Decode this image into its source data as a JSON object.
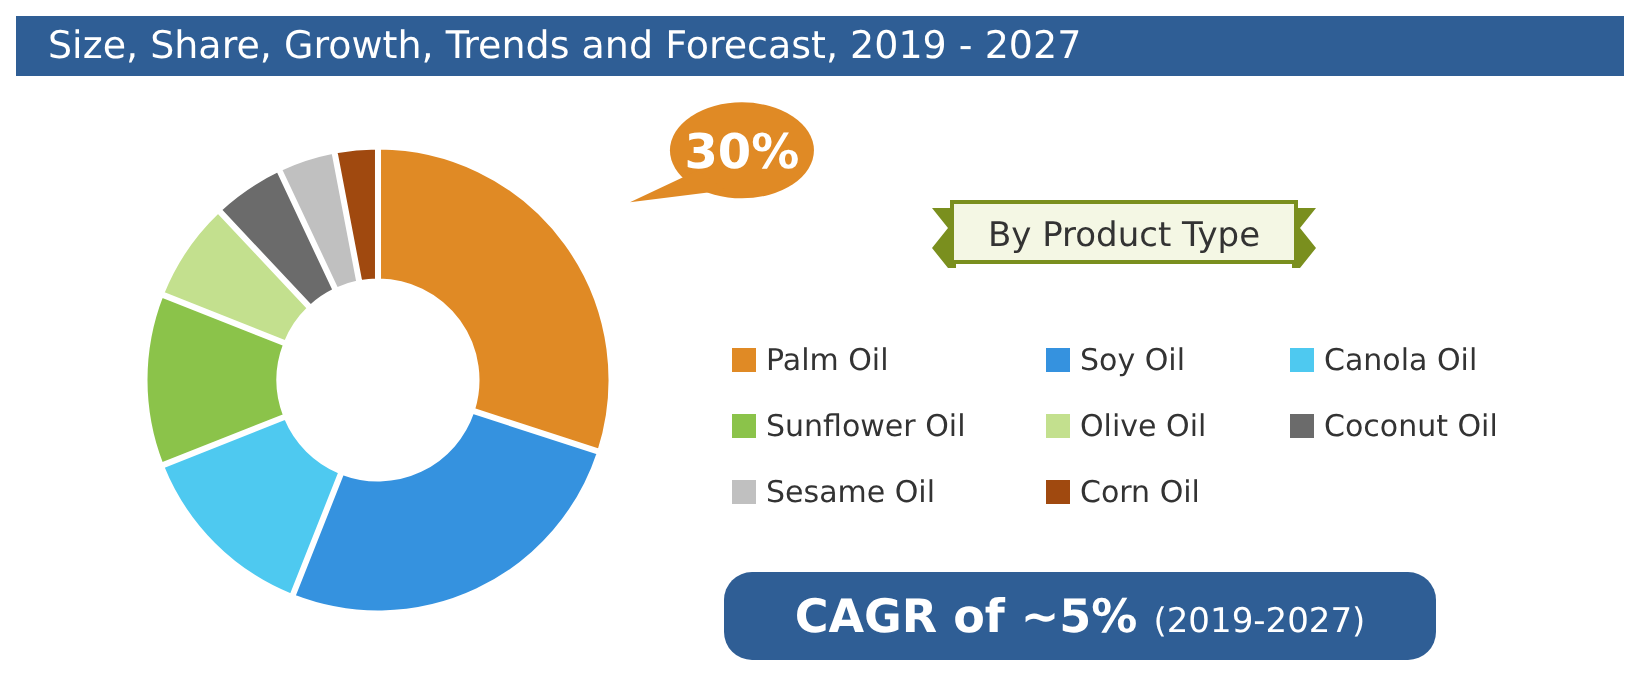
{
  "chart_data": {
    "type": "donut",
    "title": "Size, Share, Growth, Trends and Forecast, 2019 - 2027",
    "legend_title": "By Product Type",
    "legend": "right",
    "categories": [
      "Palm Oil",
      "Soy Oil",
      "Canola Oil",
      "Sunflower Oil",
      "Olive Oil",
      "Coconut Oil",
      "Sesame Oil",
      "Corn Oil"
    ],
    "values": [
      30,
      26,
      13,
      12,
      7,
      5,
      4,
      3
    ],
    "colors": [
      "#e08a25",
      "#3592df",
      "#4ec9f0",
      "#8bc34a",
      "#c3e08e",
      "#6b6b6b",
      "#c0c0c0",
      "#a0490f"
    ],
    "value_labels": [
      "30%",
      null,
      null,
      null,
      null,
      null,
      null,
      null
    ],
    "annotations": [
      "CAGR of ~5%",
      "(2019-2027)"
    ]
  }
}
